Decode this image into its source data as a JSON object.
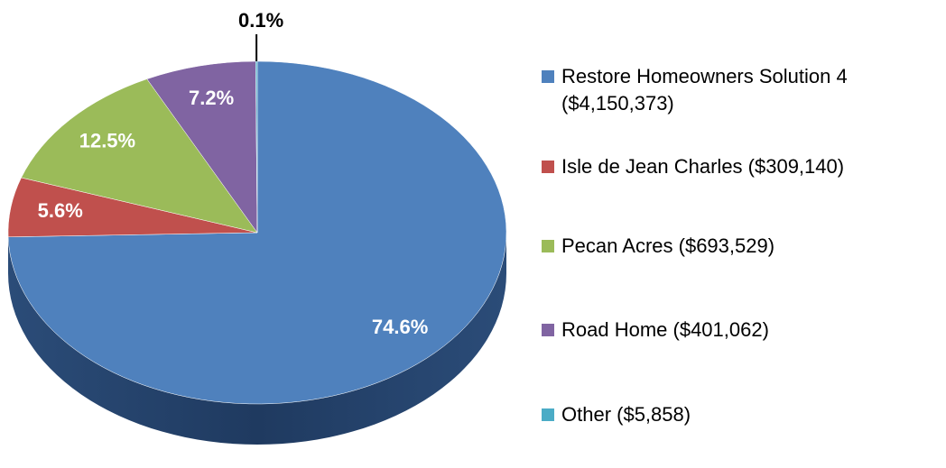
{
  "chart_data": {
    "type": "pie",
    "series": [
      {
        "name": "Restore Homeowners Solution 4 ($4,150,373)",
        "color": "#4f81bd"
      },
      {
        "name": "Isle de Jean Charles ($309,140)",
        "color": "#c0504d"
      },
      {
        "name": "Pecan Acres ($693,529)",
        "color": "#9bbb59"
      },
      {
        "name": "Road Home ($401,062)",
        "color": "#8064a2"
      },
      {
        "name": "Other ($5,858)",
        "color": "#4bacc6"
      }
    ],
    "values": [
      74.6,
      5.6,
      12.5,
      7.2,
      0.1
    ],
    "value_labels": [
      "74.6%",
      "5.6%",
      "12.5%",
      "7.2%",
      "0.1%"
    ],
    "legend": "right"
  }
}
